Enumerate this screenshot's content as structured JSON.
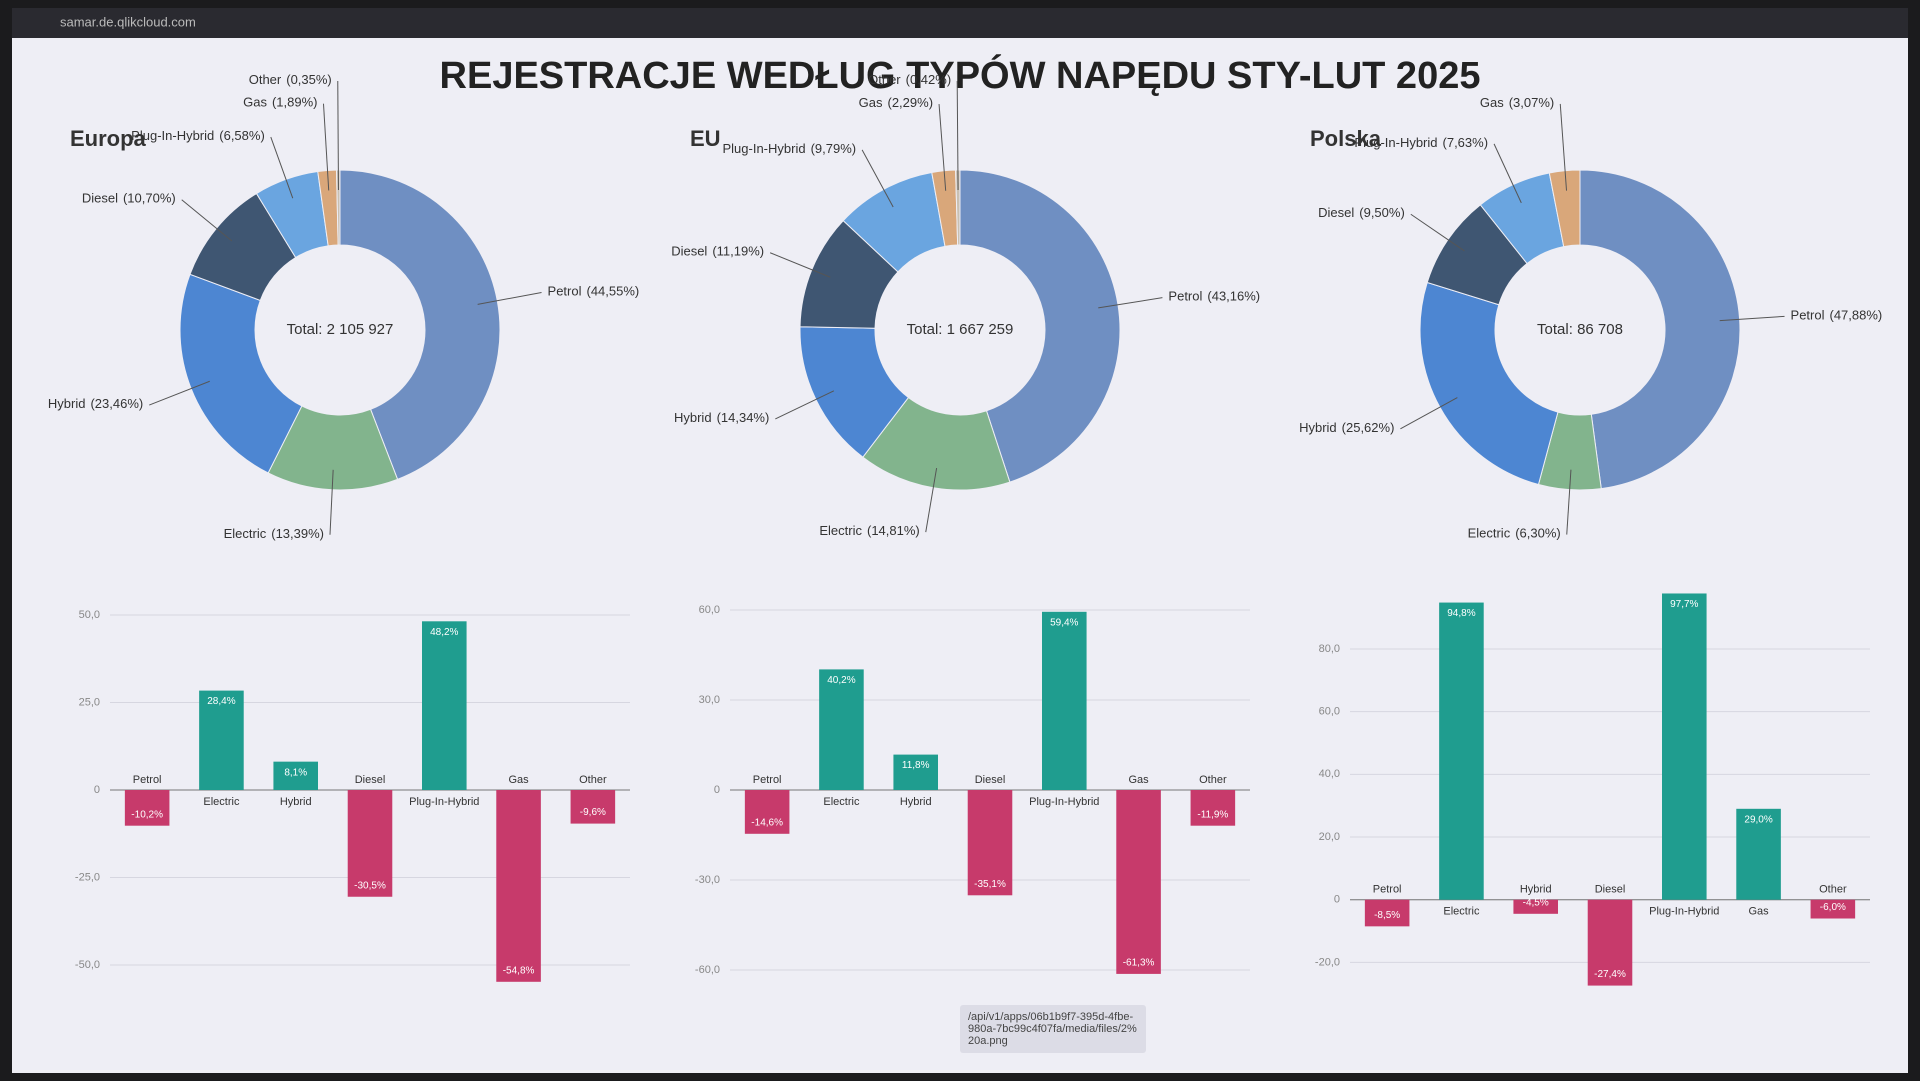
{
  "url": "samar.de.qlikcloud.com",
  "title": "REJESTRACJE WEDŁUG TYPÓW NAPĘDU STY-LUT 2025",
  "tooltip": "/api/v1/apps/06b1b9f7-395d-4fbe-980a-7bc99c4f07fa/media/files/2%20a.png",
  "chart_data": [
    {
      "type": "pie",
      "title": "Europa",
      "center_label": "Total: 2 105 927",
      "categories": [
        "Petrol",
        "Electric",
        "Hybrid",
        "Diesel",
        "Plug-In-Hybrid",
        "Gas",
        "Other"
      ],
      "values": [
        44.55,
        13.39,
        23.46,
        10.7,
        6.58,
        1.89,
        0.35
      ],
      "value_labels": [
        "(44,55%)",
        "(13,39%)",
        "(23,46%)",
        "(10,70%)",
        "(6,58%)",
        "(1,89%)",
        "(0,35%)"
      ],
      "colors": [
        "#6f8fc2",
        "#82b48d",
        "#4d86d2",
        "#3f5672",
        "#6aa5e0",
        "#d9a77a",
        "#c9c0b2"
      ]
    },
    {
      "type": "pie",
      "title": "EU",
      "center_label": "Total: 1 667 259",
      "categories": [
        "Petrol",
        "Electric",
        "Hybrid",
        "Diesel",
        "Plug-In-Hybrid",
        "Gas",
        "Other"
      ],
      "values": [
        43.16,
        14.81,
        14.34,
        11.19,
        9.79,
        2.29,
        0.42
      ],
      "value_labels": [
        "(43,16%)",
        "(14,81%)",
        "(14,34%)",
        "(11,19%)",
        "(9,79%)",
        "(2,29%)",
        "(0,42%)"
      ],
      "colors": [
        "#6f8fc2",
        "#82b48d",
        "#4d86d2",
        "#3f5672",
        "#6aa5e0",
        "#d9a77a",
        "#c9c0b2"
      ]
    },
    {
      "type": "pie",
      "title": "Polska",
      "center_label": "Total: 86 708",
      "categories": [
        "Petrol",
        "Electric",
        "Hybrid",
        "Diesel",
        "Plug-In-Hybrid",
        "Gas"
      ],
      "values": [
        47.88,
        6.3,
        25.62,
        9.5,
        7.63,
        3.07
      ],
      "value_labels": [
        "(47,88%)",
        "(6,30%)",
        "(25,62%)",
        "(9,50%)",
        "(7,63%)",
        "(3,07%)"
      ],
      "colors": [
        "#6f8fc2",
        "#82b48d",
        "#4d86d2",
        "#3f5672",
        "#6aa5e0",
        "#d9a77a"
      ]
    },
    {
      "type": "bar",
      "categories": [
        "Petrol",
        "Electric",
        "Hybrid",
        "Diesel",
        "Plug-In-Hybrid",
        "Gas",
        "Other"
      ],
      "values": [
        -10.2,
        28.4,
        8.1,
        -30.5,
        48.2,
        -54.8,
        -9.6
      ],
      "value_labels": [
        "-10,2%",
        "28,4%",
        "8,1%",
        "-30,5%",
        "48,2%",
        "-54,8%",
        "-9,6%"
      ],
      "positive_color": "#1f9d8f",
      "negative_color": "#c73a6b",
      "ylim": [
        -60,
        60
      ],
      "yticks": [
        {
          "value": -50,
          "label": "-50,0"
        },
        {
          "value": -25,
          "label": "-25,0"
        },
        0,
        {
          "value": 25,
          "label": "25,0"
        },
        {
          "value": 50,
          "label": "50,0"
        }
      ],
      "grid": true
    },
    {
      "type": "bar",
      "categories": [
        "Petrol",
        "Electric",
        "Hybrid",
        "Diesel",
        "Plug-In-Hybrid",
        "Gas",
        "Other"
      ],
      "values": [
        -14.6,
        40.2,
        11.8,
        -35.1,
        59.4,
        -61.3,
        -11.9
      ],
      "value_labels": [
        "-14,6%",
        "40,2%",
        "11,8%",
        "-35,1%",
        "59,4%",
        "-61,3%",
        "-11,9%"
      ],
      "positive_color": "#1f9d8f",
      "negative_color": "#c73a6b",
      "ylim": [
        -70,
        70
      ],
      "yticks": [
        {
          "value": -60,
          "label": "-60,0"
        },
        {
          "value": -30,
          "label": "-30,0"
        },
        0,
        {
          "value": 30,
          "label": "30,0"
        },
        {
          "value": 60,
          "label": "60,0"
        }
      ],
      "grid": true
    },
    {
      "type": "bar",
      "categories": [
        "Petrol",
        "Electric",
        "Hybrid",
        "Diesel",
        "Plug-In-Hybrid",
        "Gas",
        "Other"
      ],
      "values": [
        -8.5,
        94.8,
        -4.5,
        -27.4,
        97.7,
        29.0,
        -6.0
      ],
      "value_labels": [
        "-8,5%",
        "94,8%",
        "-4,5%",
        "-27,4%",
        "97,7%",
        "29,0%",
        "-6,0%"
      ],
      "positive_color": "#1f9d8f",
      "negative_color": "#c73a6b",
      "ylim": [
        -32,
        102
      ],
      "yticks": [
        {
          "value": -20,
          "label": "-20,0"
        },
        0,
        {
          "value": 20,
          "label": "20,0"
        },
        {
          "value": 40,
          "label": "40,0"
        },
        {
          "value": 60,
          "label": "60,0"
        },
        {
          "value": 80,
          "label": "80,0"
        }
      ],
      "grid": true
    }
  ]
}
